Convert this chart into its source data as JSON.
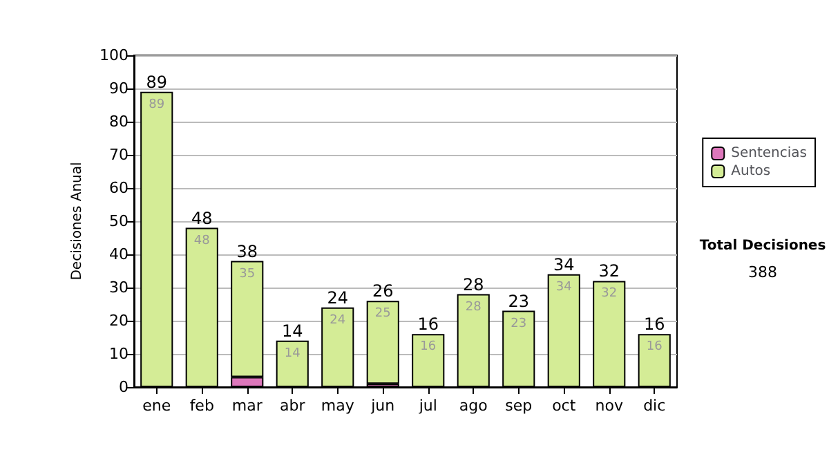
{
  "chart_data": {
    "type": "bar",
    "stacked": true,
    "ylabel": "Decisiones Anual",
    "categories": [
      "ene",
      "feb",
      "mar",
      "abr",
      "may",
      "jun",
      "jul",
      "ago",
      "sep",
      "oct",
      "nov",
      "dic"
    ],
    "series": [
      {
        "name": "Sentencias",
        "color": "#dd77bb",
        "values": [
          null,
          null,
          3,
          null,
          null,
          1,
          null,
          null,
          null,
          null,
          null,
          null
        ]
      },
      {
        "name": "Autos",
        "color": "#d4ec96",
        "values": [
          89,
          48,
          35,
          14,
          24,
          25,
          16,
          28,
          23,
          34,
          32,
          16
        ],
        "value_labels": [
          "89",
          "48",
          "35",
          "14",
          "24",
          "25",
          "16",
          "28",
          "23",
          "34",
          "32",
          "16"
        ]
      }
    ],
    "totals": [
      "89",
      "48",
      "38",
      "14",
      "24",
      "26",
      "16",
      "28",
      "23",
      "34",
      "32",
      "16"
    ],
    "ylim": [
      0,
      100
    ],
    "yticks": [
      0,
      10,
      20,
      30,
      40,
      50,
      60,
      70,
      80,
      90,
      100
    ],
    "grid": "y",
    "legend": "right",
    "annotations": [
      "Total Decisiones",
      "388"
    ]
  }
}
